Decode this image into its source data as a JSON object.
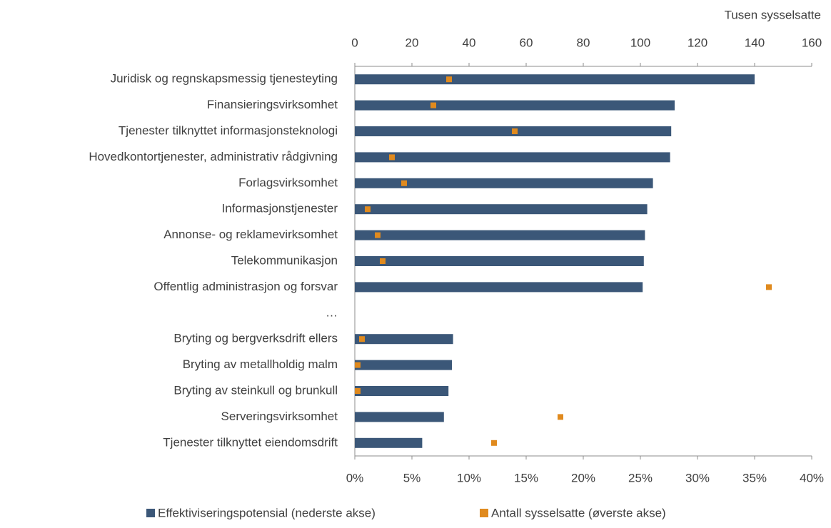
{
  "chart_data": {
    "type": "bar",
    "orientation": "horizontal",
    "x2_label": "Tusen sysselsatte",
    "categories": [
      "Juridisk og regnskapsmessig tjenesteyting",
      "Finansieringsvirksomhet",
      "Tjenester tilknyttet informasjonsteknologi",
      "Hovedkontortjenester, administrativ rådgivning",
      "Forlagsvirksomhet",
      "Informasjonstjenester",
      "Annonse- og reklamevirksomhet",
      "Telekommunikasjon",
      "Offentlig administrasjon og forsvar",
      "…",
      "Bryting og bergverksdrift ellers",
      "Bryting av metallholdig malm",
      "Bryting av steinkull og brunkull",
      "Serveringsvirksomhet",
      "Tjenester tilknyttet eiendomsdrift"
    ],
    "series": [
      {
        "name": "Effektiviseringspotensial (nederste akse)",
        "color": "#3b5778",
        "axis": "x",
        "values": [
          35,
          28,
          27.7,
          27.6,
          26.1,
          25.6,
          25.4,
          25.3,
          25.2,
          null,
          8.6,
          8.5,
          8.2,
          7.8,
          5.9
        ]
      },
      {
        "name": "Antall sysselsatte (øverste akse)",
        "color": "#e08a1e",
        "axis": "x2",
        "values": [
          33,
          27.5,
          56,
          13,
          17.25,
          4.5,
          8,
          9.75,
          145,
          null,
          2.5,
          1,
          1,
          72,
          48.75
        ]
      }
    ],
    "xlim": [
      0,
      40
    ],
    "xticks": [
      {
        "value": 0,
        "label": "0%"
      },
      {
        "value": 5,
        "label": "5%"
      },
      {
        "value": 10,
        "label": "10%"
      },
      {
        "value": 15,
        "label": "15%"
      },
      {
        "value": 20,
        "label": "20%"
      },
      {
        "value": 25,
        "label": "25%"
      },
      {
        "value": 30,
        "label": "30%"
      },
      {
        "value": 35,
        "label": "35%"
      },
      {
        "value": 40,
        "label": "40%"
      }
    ],
    "x2lim": [
      0,
      160
    ],
    "x2ticks": [
      0,
      20,
      40,
      60,
      80,
      100,
      120,
      140,
      160
    ],
    "legend": "bottom"
  }
}
